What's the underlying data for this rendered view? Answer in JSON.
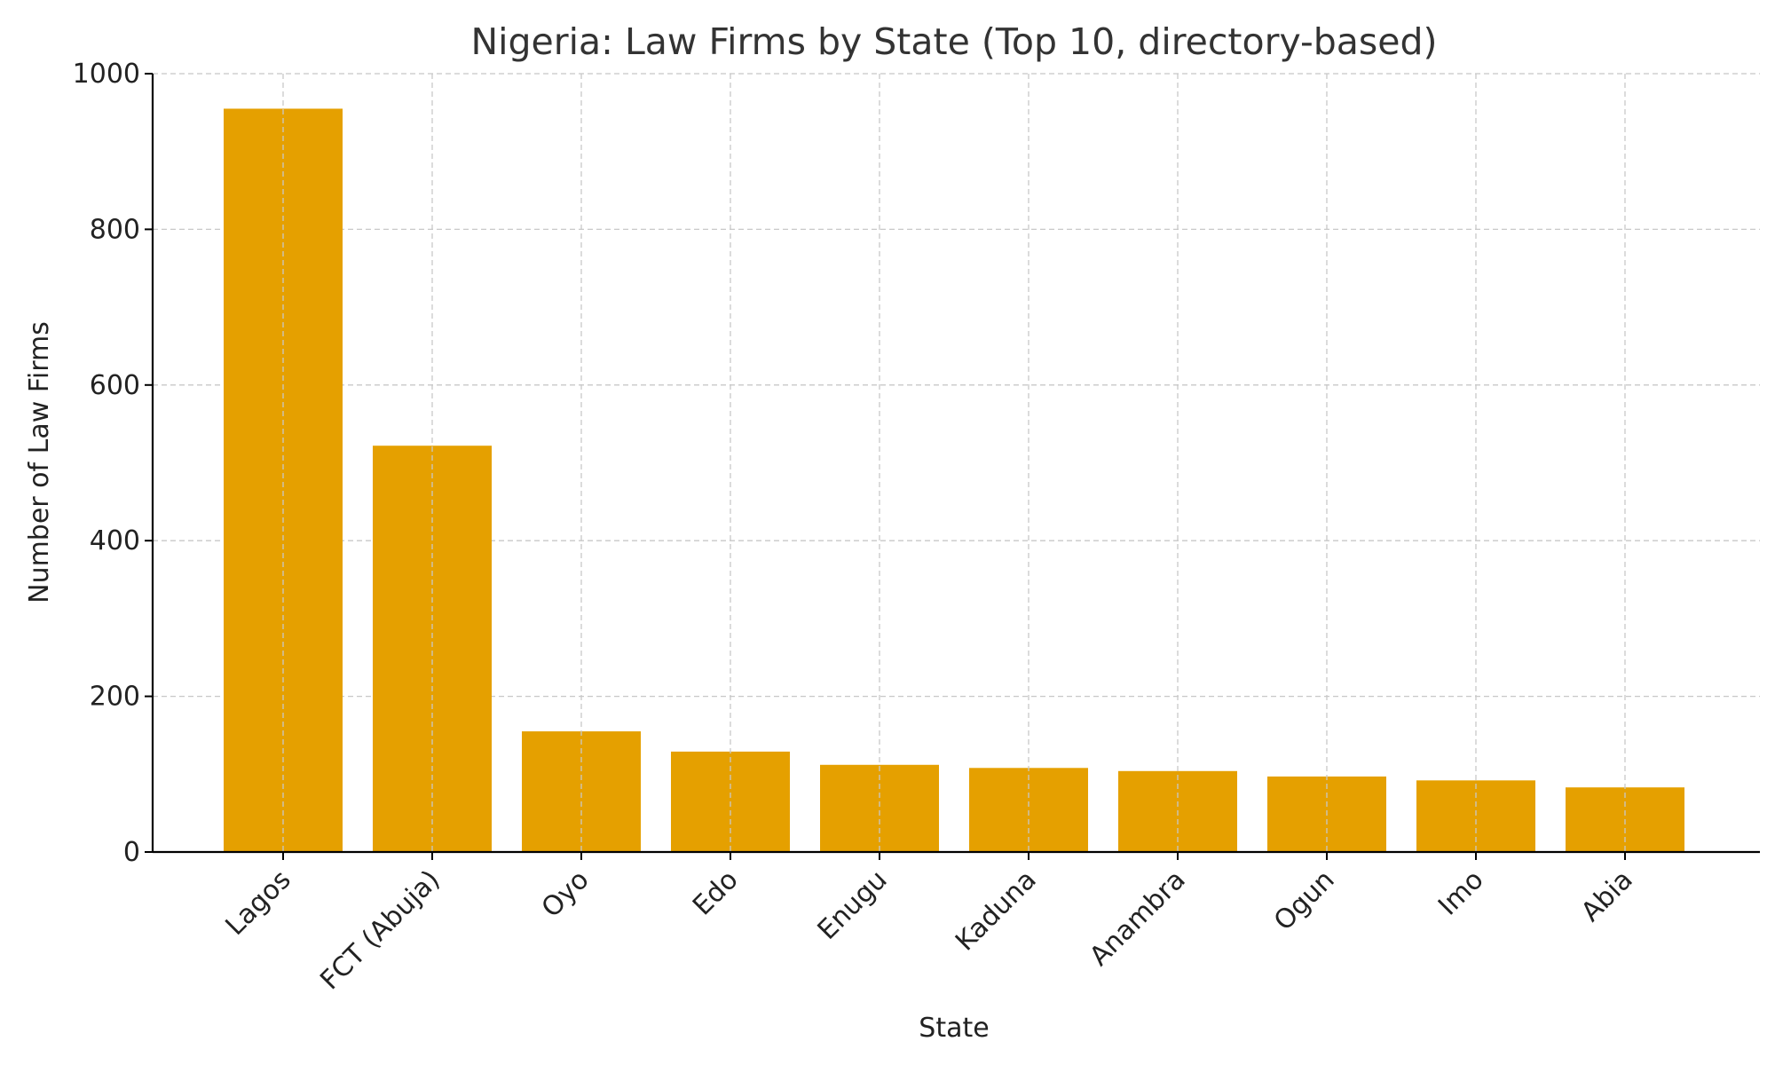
{
  "chart_data": {
    "type": "bar",
    "title": "Nigeria: Law Firms by State (Top 10, directory-based)",
    "xlabel": "State",
    "ylabel": "Number of Law Firms",
    "categories": [
      "Lagos",
      "FCT (Abuja)",
      "Oyo",
      "Edo",
      "Enugu",
      "Kaduna",
      "Anambra",
      "Ogun",
      "Imo",
      "Abia"
    ],
    "values": [
      955,
      522,
      155,
      129,
      112,
      108,
      104,
      97,
      92,
      83
    ],
    "ylim": [
      0,
      1000
    ],
    "yticks": [
      0,
      200,
      400,
      600,
      800,
      1000
    ],
    "bar_color": "#E5A000",
    "grid": true,
    "legend": "none"
  }
}
